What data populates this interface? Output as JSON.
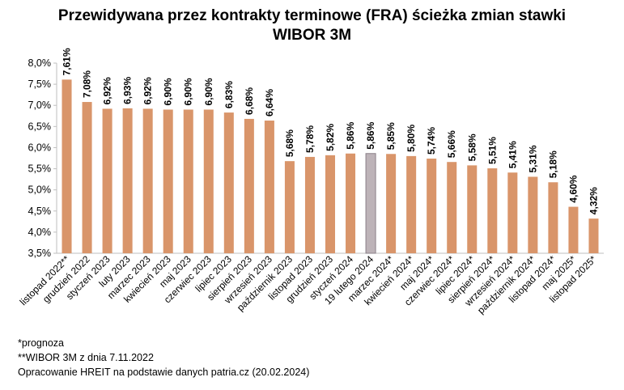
{
  "title_line1": "Przewidywana przez kontrakty terminowe (FRA) ścieżka zmian stawki",
  "title_line2": "WIBOR 3M",
  "notes": {
    "forecast": "*prognoza",
    "wibor_date": "**WIBOR 3M z dnia 7.11.2022",
    "source": "Opracowanie HREIT na podstawie danych patria.cz (20.02.2024)"
  },
  "chart_data": {
    "type": "bar",
    "title": "Przewidywana przez kontrakty terminowe (FRA) ścieżka zmian stawki WIBOR 3M",
    "xlabel": "",
    "ylabel": "",
    "ylim": [
      3.5,
      8.0
    ],
    "yticks": [
      3.5,
      4.0,
      4.5,
      5.0,
      5.5,
      6.0,
      6.5,
      7.0,
      7.5,
      8.0
    ],
    "ytick_labels": [
      "3,5%",
      "4,0%",
      "4,5%",
      "5,0%",
      "5,5%",
      "6,0%",
      "6,5%",
      "7,0%",
      "7,5%",
      "8,0%"
    ],
    "grid": false,
    "categories": [
      "listopad 2022**",
      "grudzień 2022",
      "styczeń 2023",
      "luty 2023",
      "marzec 2023",
      "kwiecień 2023",
      "maj 2023",
      "czerwiec 2023",
      "lipiec 2023",
      "sierpień 2023",
      "wrzesień 2023",
      "październik 2023",
      "listopad 2023",
      "grudzień 2023",
      "styczeń 2024",
      "19 lutego 2024",
      "marzec 2024*",
      "kwiecień 2024*",
      "maj 2024*",
      "czerwiec 2024*",
      "lipiec 2024*",
      "sierpień 2024*",
      "wrzesień 2024*",
      "październik 2024*",
      "listopad 2024*",
      "maj 2025*",
      "listopad 2025*"
    ],
    "values": [
      7.61,
      7.08,
      6.92,
      6.93,
      6.92,
      6.9,
      6.9,
      6.9,
      6.83,
      6.68,
      6.64,
      5.68,
      5.78,
      5.82,
      5.86,
      5.86,
      5.85,
      5.8,
      5.74,
      5.66,
      5.58,
      5.51,
      5.41,
      5.31,
      5.18,
      4.6,
      4.32
    ],
    "value_labels": [
      "7,61%",
      "7,08%",
      "6,92%",
      "6,93%",
      "6,92%",
      "6,90%",
      "6,90%",
      "6,90%",
      "6,83%",
      "6,68%",
      "6,64%",
      "5,68%",
      "5,78%",
      "5,82%",
      "5,86%",
      "5,86%",
      "5,85%",
      "5,80%",
      "5,74%",
      "5,66%",
      "5,58%",
      "5,51%",
      "5,41%",
      "5,31%",
      "5,18%",
      "4,60%",
      "4,32%"
    ],
    "colors": {
      "bar": "#d9956a",
      "highlight": "#bdb3b8",
      "axis": "#bfbfbf"
    },
    "highlight_index": 15
  }
}
